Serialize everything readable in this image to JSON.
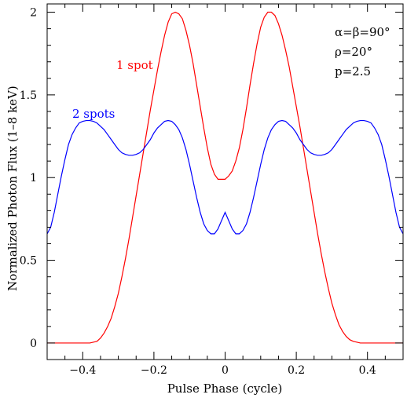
{
  "chart_data": {
    "type": "line",
    "title": "",
    "xlabel": "Pulse Phase (cycle)",
    "ylabel": "Normalized Photon Flux (1–8 keV)",
    "xlim": [
      -0.5,
      0.5
    ],
    "ylim": [
      -0.1,
      2.05
    ],
    "x_ticks": [
      -0.4,
      -0.2,
      0,
      0.2,
      0.4
    ],
    "x_tick_labels": [
      "−0.4",
      "−0.2",
      "0",
      "0.2",
      "0.4"
    ],
    "y_ticks": [
      0,
      0.5,
      1,
      1.5,
      2
    ],
    "y_tick_labels": [
      "0",
      "0.5",
      "1",
      "1.5",
      "2"
    ],
    "grid": false,
    "annotations": {
      "params": [
        "α=β=90°",
        "ρ=20°",
        "p=2.5"
      ]
    },
    "series": [
      {
        "name": "1 spot",
        "color": "#ff0000",
        "x": [
          -0.5,
          -0.48,
          -0.46,
          -0.44,
          -0.42,
          -0.4,
          -0.38,
          -0.36,
          -0.35,
          -0.34,
          -0.33,
          -0.32,
          -0.31,
          -0.3,
          -0.29,
          -0.28,
          -0.27,
          -0.26,
          -0.25,
          -0.24,
          -0.23,
          -0.22,
          -0.21,
          -0.2,
          -0.19,
          -0.18,
          -0.17,
          -0.16,
          -0.15,
          -0.14,
          -0.13,
          -0.12,
          -0.11,
          -0.1,
          -0.09,
          -0.08,
          -0.07,
          -0.06,
          -0.05,
          -0.04,
          -0.03,
          -0.02,
          -0.01,
          0,
          0.01,
          0.02,
          0.03,
          0.04,
          0.05,
          0.06,
          0.07,
          0.08,
          0.09,
          0.1,
          0.11,
          0.12,
          0.13,
          0.14,
          0.15,
          0.16,
          0.17,
          0.18,
          0.19,
          0.2,
          0.21,
          0.22,
          0.23,
          0.24,
          0.25,
          0.26,
          0.27,
          0.28,
          0.29,
          0.3,
          0.31,
          0.32,
          0.33,
          0.34,
          0.35,
          0.36,
          0.38,
          0.4,
          0.42,
          0.44,
          0.46,
          0.48,
          0.5
        ],
        "y": [
          0,
          0,
          0,
          0,
          0,
          0,
          0,
          0.01,
          0.03,
          0.06,
          0.1,
          0.15,
          0.22,
          0.3,
          0.4,
          0.51,
          0.63,
          0.76,
          0.89,
          1.02,
          1.15,
          1.28,
          1.41,
          1.53,
          1.65,
          1.76,
          1.86,
          1.94,
          1.99,
          2.0,
          1.99,
          1.96,
          1.89,
          1.8,
          1.69,
          1.56,
          1.43,
          1.3,
          1.18,
          1.08,
          1.02,
          0.99,
          0.99,
          0.99,
          1.01,
          1.04,
          1.1,
          1.18,
          1.29,
          1.42,
          1.56,
          1.69,
          1.81,
          1.91,
          1.97,
          2.0,
          2.0,
          1.98,
          1.93,
          1.86,
          1.77,
          1.67,
          1.55,
          1.43,
          1.31,
          1.18,
          1.05,
          0.92,
          0.79,
          0.66,
          0.54,
          0.43,
          0.33,
          0.24,
          0.17,
          0.11,
          0.07,
          0.04,
          0.02,
          0.01,
          0,
          0,
          0,
          0,
          0,
          0,
          0
        ]
      },
      {
        "name": "2 spots",
        "color": "#0000ff",
        "x": [
          -0.5,
          -0.49,
          -0.48,
          -0.47,
          -0.46,
          -0.45,
          -0.44,
          -0.43,
          -0.42,
          -0.41,
          -0.4,
          -0.39,
          -0.38,
          -0.37,
          -0.36,
          -0.35,
          -0.34,
          -0.33,
          -0.32,
          -0.31,
          -0.3,
          -0.29,
          -0.28,
          -0.27,
          -0.26,
          -0.25,
          -0.24,
          -0.23,
          -0.22,
          -0.21,
          -0.2,
          -0.19,
          -0.18,
          -0.17,
          -0.16,
          -0.15,
          -0.14,
          -0.13,
          -0.12,
          -0.11,
          -0.1,
          -0.09,
          -0.08,
          -0.07,
          -0.06,
          -0.05,
          -0.04,
          -0.03,
          -0.02,
          -0.01,
          0,
          0.01,
          0.02,
          0.03,
          0.04,
          0.05,
          0.06,
          0.07,
          0.08,
          0.09,
          0.1,
          0.11,
          0.12,
          0.13,
          0.14,
          0.15,
          0.16,
          0.17,
          0.18,
          0.19,
          0.2,
          0.21,
          0.22,
          0.23,
          0.24,
          0.25,
          0.26,
          0.27,
          0.28,
          0.29,
          0.3,
          0.31,
          0.32,
          0.33,
          0.34,
          0.35,
          0.36,
          0.37,
          0.38,
          0.39,
          0.4,
          0.41,
          0.42,
          0.43,
          0.44,
          0.45,
          0.46,
          0.47,
          0.48,
          0.49,
          0.5
        ],
        "y": [
          0.66,
          0.7,
          0.79,
          0.9,
          1.01,
          1.11,
          1.2,
          1.26,
          1.3,
          1.33,
          1.34,
          1.345,
          1.345,
          1.34,
          1.33,
          1.31,
          1.29,
          1.26,
          1.23,
          1.2,
          1.17,
          1.15,
          1.14,
          1.135,
          1.135,
          1.14,
          1.15,
          1.17,
          1.2,
          1.23,
          1.27,
          1.3,
          1.32,
          1.34,
          1.345,
          1.34,
          1.32,
          1.29,
          1.24,
          1.17,
          1.08,
          0.98,
          0.88,
          0.79,
          0.72,
          0.68,
          0.66,
          0.66,
          0.69,
          0.74,
          0.79,
          0.74,
          0.69,
          0.66,
          0.66,
          0.68,
          0.72,
          0.79,
          0.88,
          0.98,
          1.08,
          1.17,
          1.24,
          1.29,
          1.32,
          1.34,
          1.345,
          1.34,
          1.32,
          1.3,
          1.27,
          1.23,
          1.2,
          1.17,
          1.15,
          1.14,
          1.135,
          1.135,
          1.14,
          1.15,
          1.17,
          1.2,
          1.23,
          1.26,
          1.29,
          1.31,
          1.33,
          1.34,
          1.345,
          1.345,
          1.34,
          1.33,
          1.3,
          1.26,
          1.2,
          1.11,
          1.01,
          0.9,
          0.79,
          0.7,
          0.66
        ]
      }
    ]
  }
}
